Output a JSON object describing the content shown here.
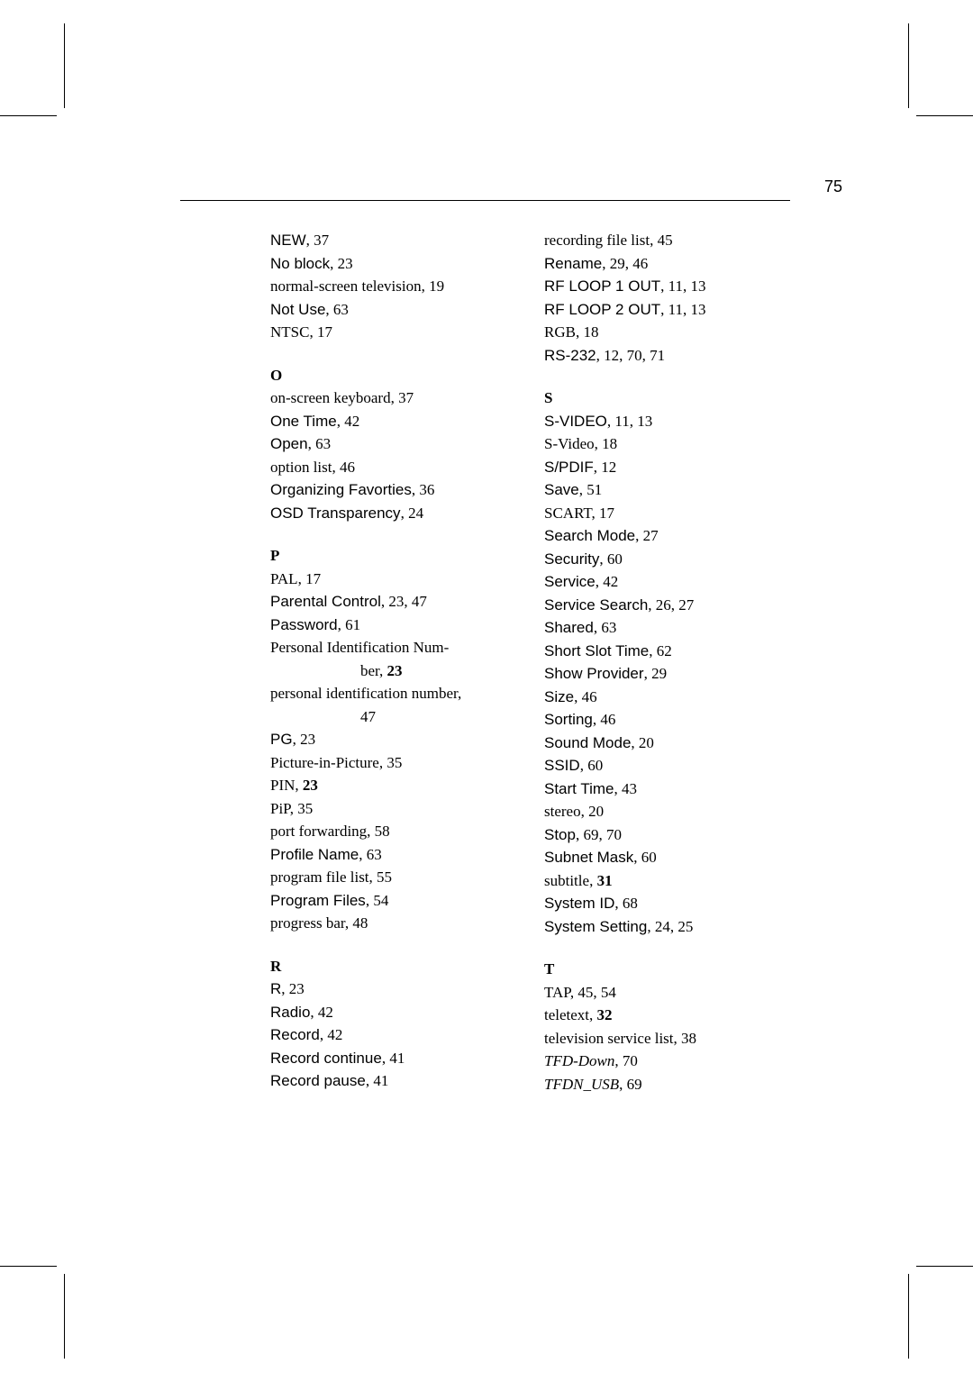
{
  "page_number": "75",
  "col1": {
    "n_entries": [
      {
        "term": "NEW",
        "termClass": "sans",
        "pages": ", 37"
      },
      {
        "term": "No block",
        "termClass": "sans",
        "pages": ", 23"
      },
      {
        "term": "normal-screen television",
        "termClass": "serif",
        "pages": ", 19"
      },
      {
        "term": "Not Use",
        "termClass": "sans",
        "pages": ", 63"
      },
      {
        "term": "NTSC",
        "termClass": "serif",
        "pages": ", 17"
      }
    ],
    "o_head": "O",
    "o_entries": [
      {
        "term": "on-screen keyboard",
        "termClass": "serif",
        "pages": ", 37"
      },
      {
        "term": "One Time",
        "termClass": "sans",
        "pages": ", 42"
      },
      {
        "term": "Open",
        "termClass": "sans",
        "pages": ", 63"
      },
      {
        "term": "option list",
        "termClass": "serif",
        "pages": ", 46"
      },
      {
        "term": "Organizing Favorties",
        "termClass": "sans",
        "pages": ", 36"
      },
      {
        "term": "OSD Transparency",
        "termClass": "sans",
        "pages": ", 24"
      }
    ],
    "p_head": "P",
    "p_entries_1": [
      {
        "term": "PAL",
        "termClass": "serif",
        "pages": ", 17"
      },
      {
        "term": "Parental Control",
        "termClass": "sans",
        "pages": ", 23, 47"
      },
      {
        "term": "Password",
        "termClass": "sans",
        "pages": ", 61"
      }
    ],
    "p_pin_line1": "Personal Identification Num-",
    "p_pin_line2_pre": "ber, ",
    "p_pin_line2_bold": "23",
    "p_persid_line1": "personal identification number,",
    "p_persid_line2": "47",
    "p_entries_2": [
      {
        "term": "PG",
        "termClass": "sans",
        "pages": ", 23"
      },
      {
        "term": "Picture-in-Picture",
        "termClass": "serif",
        "pages": ", 35"
      }
    ],
    "p_pin_term": "PIN",
    "p_pin_sep": ", ",
    "p_pin_bold": "23",
    "p_entries_3": [
      {
        "term": "PiP",
        "termClass": "serif",
        "pages": ", 35"
      },
      {
        "term": "port forwarding",
        "termClass": "serif",
        "pages": ", 58"
      },
      {
        "term": "Profile Name",
        "termClass": "sans",
        "pages": ", 63"
      },
      {
        "term": "program file list",
        "termClass": "serif",
        "pages": ", 55"
      },
      {
        "term": "Program Files",
        "termClass": "sans",
        "pages": ", 54"
      },
      {
        "term": "progress bar",
        "termClass": "serif",
        "pages": ", 48"
      }
    ],
    "r_head": "R",
    "r_entries": [
      {
        "term": "R",
        "termClass": "sans",
        "pages": ", 23"
      },
      {
        "term": "Radio",
        "termClass": "sans",
        "pages": ", 42"
      },
      {
        "term": "Record",
        "termClass": "sans",
        "pages": ", 42"
      },
      {
        "term": "Record continue",
        "termClass": "sans",
        "pages": ", 41"
      },
      {
        "term": "Record pause",
        "termClass": "sans",
        "pages": ", 41"
      }
    ]
  },
  "col2": {
    "r_cont": [
      {
        "term": "recording file list",
        "termClass": "serif",
        "pages": ", 45"
      },
      {
        "term": "Rename",
        "termClass": "sans",
        "pages": ", 29, 46"
      },
      {
        "term": "RF LOOP 1 OUT",
        "termClass": "sans",
        "pages": ", 11, 13"
      },
      {
        "term": "RF LOOP 2 OUT",
        "termClass": "sans",
        "pages": ", 11, 13"
      },
      {
        "term": "RGB",
        "termClass": "serif",
        "pages": ", 18"
      },
      {
        "term": "RS-232",
        "termClass": "sans",
        "pages": ", 12, 70, 71"
      }
    ],
    "s_head": "S",
    "s_entries": [
      {
        "term": "S-VIDEO",
        "termClass": "sans",
        "pages": ", 11, 13"
      },
      {
        "term": "S-Video",
        "termClass": "serif",
        "pages": ", 18"
      },
      {
        "term": "S/PDIF",
        "termClass": "sans",
        "pages": ", 12"
      },
      {
        "term": "Save",
        "termClass": "sans",
        "pages": ", 51"
      },
      {
        "term": "SCART",
        "termClass": "serif",
        "pages": ", 17"
      },
      {
        "term": "Search Mode",
        "termClass": "sans",
        "pages": ", 27"
      },
      {
        "term": "Security",
        "termClass": "sans",
        "pages": ", 60"
      },
      {
        "term": "Service",
        "termClass": "sans",
        "pages": ", 42"
      },
      {
        "term": "Service Search",
        "termClass": "sans",
        "pages": ", 26, 27"
      },
      {
        "term": "Shared",
        "termClass": "sans",
        "pages": ", 63"
      },
      {
        "term": "Short Slot Time",
        "termClass": "sans",
        "pages": ", 62"
      },
      {
        "term": "Show Provider",
        "termClass": "sans",
        "pages": ", 29"
      },
      {
        "term": "Size",
        "termClass": "sans",
        "pages": ", 46"
      },
      {
        "term": "Sorting",
        "termClass": "sans",
        "pages": ", 46"
      },
      {
        "term": "Sound Mode",
        "termClass": "sans",
        "pages": ", 20"
      },
      {
        "term": "SSID",
        "termClass": "sans",
        "pages": ", 60"
      },
      {
        "term": "Start Time",
        "termClass": "sans",
        "pages": ", 43"
      },
      {
        "term": "stereo",
        "termClass": "serif",
        "pages": ", 20"
      },
      {
        "term": "Stop",
        "termClass": "sans",
        "pages": ", 69, 70"
      },
      {
        "term": "Subnet Mask",
        "termClass": "sans",
        "pages": ", 60"
      }
    ],
    "s_subtitle_term": "subtitle",
    "s_subtitle_sep": ", ",
    "s_subtitle_bold": "31",
    "s_entries_2": [
      {
        "term": "System ID",
        "termClass": "sans",
        "pages": ", 68"
      },
      {
        "term": "System Setting",
        "termClass": "sans",
        "pages": ", 24, 25"
      }
    ],
    "t_head": "T",
    "t_entries_1": [
      {
        "term": "TAP",
        "termClass": "serif",
        "pages": ", 45, 54"
      }
    ],
    "t_teletext_term": "teletext",
    "t_teletext_sep": ", ",
    "t_teletext_bold": "32",
    "t_entries_2": [
      {
        "term": "television service list",
        "termClass": "serif",
        "pages": ", 38"
      }
    ],
    "t_italic_1_term": "TFD-Down",
    "t_italic_1_pages": ", 70",
    "t_italic_2_term": "TFDN_USB",
    "t_italic_2_pages": ", 69"
  }
}
